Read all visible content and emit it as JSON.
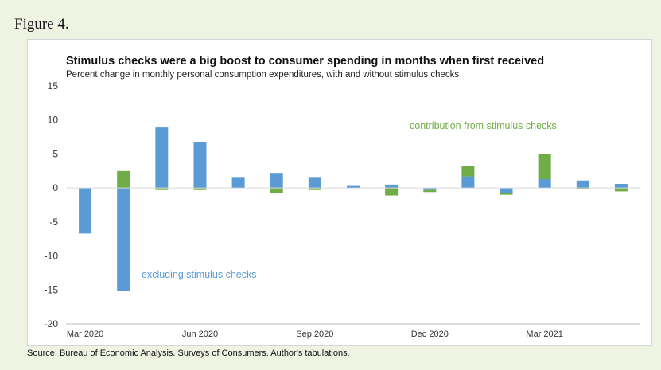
{
  "figure_label": "Figure 4.",
  "source": "Source: Bureau of Economic Analysis. Surveys of Consumers. Author's tabulations.",
  "colors": {
    "excluding": "#5b9bd5",
    "contribution": "#70ad47",
    "background": "#eef3e2"
  },
  "chart_data": {
    "type": "bar",
    "stacked": true,
    "title": "Stimulus checks were a big boost to consumer spending in months when first received",
    "subtitle": "Percent change in monthly personal consumption expenditures, with and without stimulus checks",
    "xlabel": "",
    "ylabel": "",
    "ylim": [
      -20,
      15
    ],
    "yticks": [
      15,
      10,
      5,
      0,
      -5,
      -10,
      -15,
      -20
    ],
    "grid": false,
    "categories": [
      "Mar 2020",
      "Apr 2020",
      "May 2020",
      "Jun 2020",
      "Jul 2020",
      "Aug 2020",
      "Sep 2020",
      "Oct 2020",
      "Nov 2020",
      "Dec 2020",
      "Jan 2021",
      "Feb 2021",
      "Mar 2021",
      "Apr 2021",
      "May 2021"
    ],
    "x_tick_labels": [
      "Mar 2020",
      "",
      "",
      "Jun 2020",
      "",
      "",
      "Sep 2020",
      "",
      "",
      "Dec 2020",
      "",
      "",
      "Mar 2021",
      "",
      ""
    ],
    "series": [
      {
        "name": "excluding stimulus checks",
        "values": [
          -6.7,
          -15.2,
          8.9,
          6.7,
          1.5,
          2.1,
          1.5,
          0.3,
          0.5,
          -0.3,
          1.7,
          -0.8,
          1.3,
          1.1,
          0.6
        ]
      },
      {
        "name": "contribution from stimulus checks",
        "values": [
          0.0,
          2.5,
          -0.3,
          -0.3,
          0.0,
          -0.8,
          -0.3,
          0.0,
          -1.1,
          -0.3,
          1.5,
          -0.2,
          3.7,
          -0.2,
          -0.5
        ]
      }
    ],
    "annotations": [
      {
        "text": "contribution from stimulus checks",
        "series": 1
      },
      {
        "text": "excluding stimulus checks",
        "series": 0
      }
    ]
  }
}
